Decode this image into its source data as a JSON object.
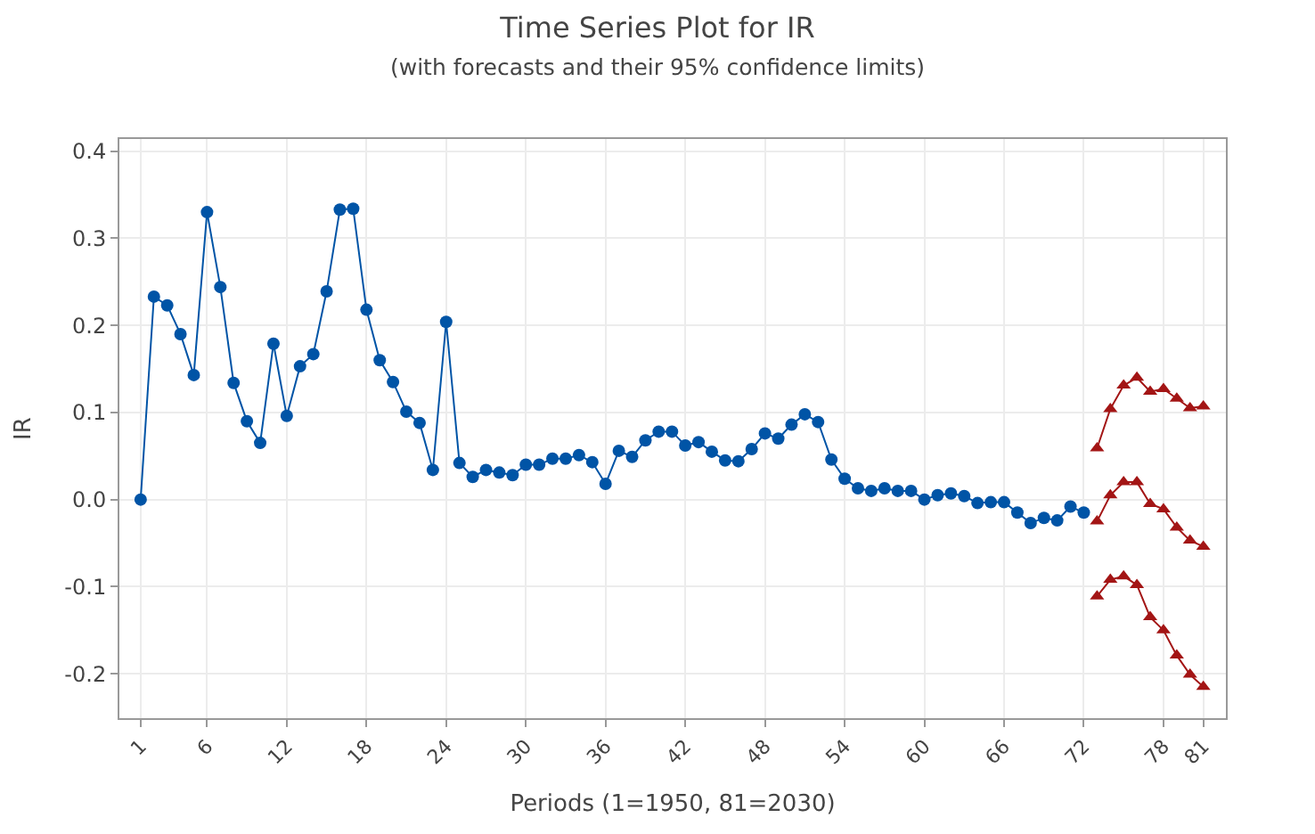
{
  "chart_data": {
    "type": "line",
    "title": "Time Series Plot for IR",
    "subtitle": "(with forecasts and their 95% confidence limits)",
    "xlabel": "Periods (1=1950, 81=2030)",
    "ylabel": "IR",
    "xlim": [
      -0.6,
      82.7
    ],
    "ylim": [
      -0.251,
      0.414
    ],
    "xticks": [
      1,
      6,
      12,
      18,
      24,
      30,
      36,
      42,
      48,
      54,
      60,
      66,
      72,
      78,
      81
    ],
    "yticks": [
      {
        "value": -0.2,
        "label": "-0.2"
      },
      {
        "value": -0.1,
        "label": "-0.1"
      },
      {
        "value": 0,
        "label": "0.0"
      },
      {
        "value": 0.1,
        "label": "0.1"
      },
      {
        "value": 0.2,
        "label": "0.2"
      },
      {
        "value": 0.3,
        "label": "0.3"
      },
      {
        "value": 0.4,
        "label": "0.4"
      }
    ],
    "grid": true,
    "legend": false,
    "line_style": "solid",
    "series": [
      {
        "color": "#0054a6",
        "marker": "circle",
        "x": [
          1,
          2,
          3,
          4,
          5,
          6,
          7,
          8,
          9,
          10,
          11,
          12,
          13,
          14,
          15,
          16,
          17,
          18,
          19,
          20,
          21,
          22,
          23,
          24,
          25,
          26,
          27,
          28,
          29,
          30,
          31,
          32,
          33,
          34,
          35,
          36,
          37,
          38,
          39,
          40,
          41,
          42,
          43,
          44,
          45,
          46,
          47,
          48,
          49,
          50,
          51,
          52,
          53,
          54,
          55,
          56,
          57,
          58,
          59,
          60,
          61,
          62,
          63,
          64,
          65,
          66,
          67,
          68,
          69,
          70,
          71,
          72
        ],
        "values": [
          0.0,
          0.233,
          0.223,
          0.19,
          0.143,
          0.33,
          0.244,
          0.134,
          0.09,
          0.065,
          0.179,
          0.096,
          0.153,
          0.167,
          0.239,
          0.333,
          0.334,
          0.218,
          0.16,
          0.135,
          0.101,
          0.088,
          0.034,
          0.204,
          0.042,
          0.026,
          0.034,
          0.031,
          0.028,
          0.04,
          0.04,
          0.047,
          0.047,
          0.051,
          0.043,
          0.018,
          0.056,
          0.049,
          0.068,
          0.078,
          0.078,
          0.062,
          0.066,
          0.055,
          0.045,
          0.044,
          0.058,
          0.076,
          0.07,
          0.086,
          0.098,
          0.089,
          0.046,
          0.024,
          0.013,
          0.01,
          0.013,
          0.01,
          0.01,
          0.0,
          0.005,
          0.007,
          0.004,
          -0.004,
          -0.003,
          -0.003,
          -0.015,
          -0.027,
          -0.021,
          -0.024,
          -0.008,
          -0.015
        ]
      },
      {
        "color": "#a31515",
        "marker": "triangle",
        "x": [
          73,
          74,
          75,
          76,
          77,
          78,
          79,
          80,
          81
        ],
        "values": [
          0.059,
          0.104,
          0.131,
          0.14,
          0.124,
          0.127,
          0.116,
          0.105,
          0.107
        ]
      },
      {
        "color": "#a31515",
        "marker": "triangle",
        "x": [
          73,
          74,
          75,
          76,
          77,
          78,
          79,
          80,
          81
        ],
        "values": [
          -0.025,
          0.005,
          0.02,
          0.02,
          -0.005,
          -0.011,
          -0.032,
          -0.047,
          -0.054
        ]
      },
      {
        "color": "#a31515",
        "marker": "triangle",
        "x": [
          73,
          74,
          75,
          76,
          77,
          78,
          79,
          80,
          81
        ],
        "values": [
          -0.111,
          -0.092,
          -0.088,
          -0.098,
          -0.135,
          -0.15,
          -0.179,
          -0.201,
          -0.215
        ]
      }
    ]
  }
}
